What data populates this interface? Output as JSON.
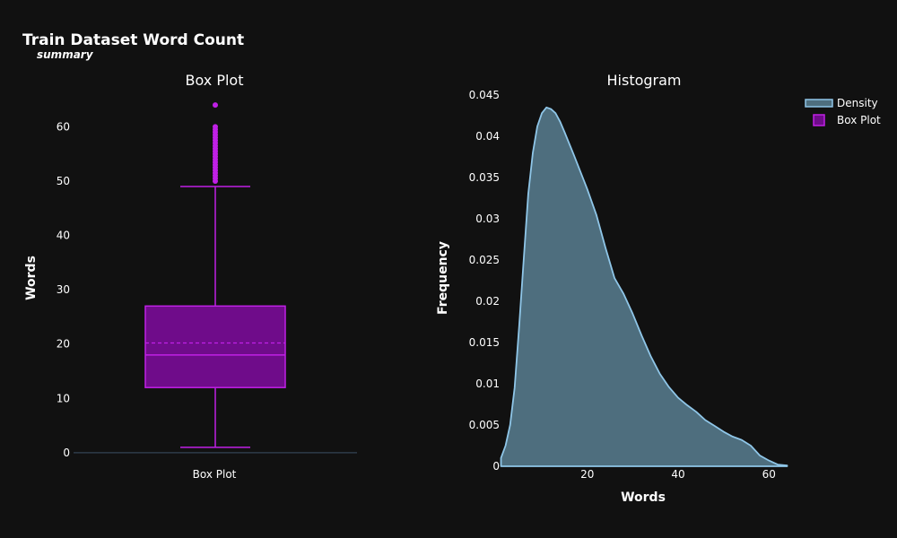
{
  "figure": {
    "title": "Train Dataset Word Count",
    "subtitle": "summary"
  },
  "colors": {
    "background": "#111111",
    "box_fill": "#6f0c8a",
    "box_line": "#c020e6",
    "density_fill": "#4e6e7e",
    "density_line": "#8fc6e8",
    "axis_line": "#2e3b49",
    "text": "#ffffff"
  },
  "legend": {
    "items": [
      {
        "label": "Density",
        "kind": "density"
      },
      {
        "label": "Box Plot",
        "kind": "box"
      }
    ]
  },
  "chart_data": [
    {
      "type": "box",
      "title": "Box Plot",
      "xlabel": "",
      "ylabel": "Words",
      "category": "Box Plot",
      "ylim": [
        -1.5,
        66
      ],
      "yticks": [
        0,
        10,
        20,
        30,
        40,
        50,
        60
      ],
      "stats": {
        "min": 1,
        "q1": 12,
        "median": 18,
        "mean": 20.2,
        "q3": 27,
        "upper_fence": 49
      },
      "outliers": [
        50,
        50.5,
        51,
        51.5,
        52,
        52.5,
        53,
        53.5,
        54,
        54.5,
        55,
        55.5,
        56,
        56.5,
        57,
        57.5,
        58,
        58.5,
        59,
        59.5,
        60,
        64
      ]
    },
    {
      "type": "area",
      "title": "Histogram",
      "xlabel": "Words",
      "ylabel": "Frequency",
      "series_name": "Density",
      "xlim": [
        0.5,
        64.5
      ],
      "ylim": [
        0,
        0.045
      ],
      "xticks": [
        20,
        40,
        60
      ],
      "yticks": [
        0,
        0.005,
        0.01,
        0.015,
        0.02,
        0.025,
        0.03,
        0.035,
        0.04,
        0.045
      ],
      "ytick_labels": [
        "0",
        "0.005",
        "0.01",
        "0.015",
        "0.02",
        "0.025",
        "0.03",
        "0.035",
        "0.04",
        "0.045"
      ],
      "x": [
        1,
        2,
        3,
        4,
        5,
        6,
        7,
        8,
        9,
        10,
        11,
        12,
        13,
        14,
        15,
        17,
        20,
        22,
        24,
        26,
        28,
        30,
        32,
        34,
        36,
        38,
        40,
        42,
        44,
        46,
        48,
        50,
        52,
        54,
        56,
        58,
        60,
        62,
        64
      ],
      "y": [
        0.001,
        0.0025,
        0.005,
        0.0095,
        0.017,
        0.025,
        0.033,
        0.038,
        0.0412,
        0.0428,
        0.0435,
        0.0433,
        0.0428,
        0.0418,
        0.0405,
        0.0378,
        0.0336,
        0.0305,
        0.0265,
        0.0228,
        0.0209,
        0.0185,
        0.0158,
        0.0133,
        0.0112,
        0.0096,
        0.0083,
        0.0074,
        0.0066,
        0.0056,
        0.0049,
        0.0042,
        0.0036,
        0.0032,
        0.0025,
        0.0013,
        0.0007,
        0.0002,
        0.0001
      ]
    }
  ]
}
